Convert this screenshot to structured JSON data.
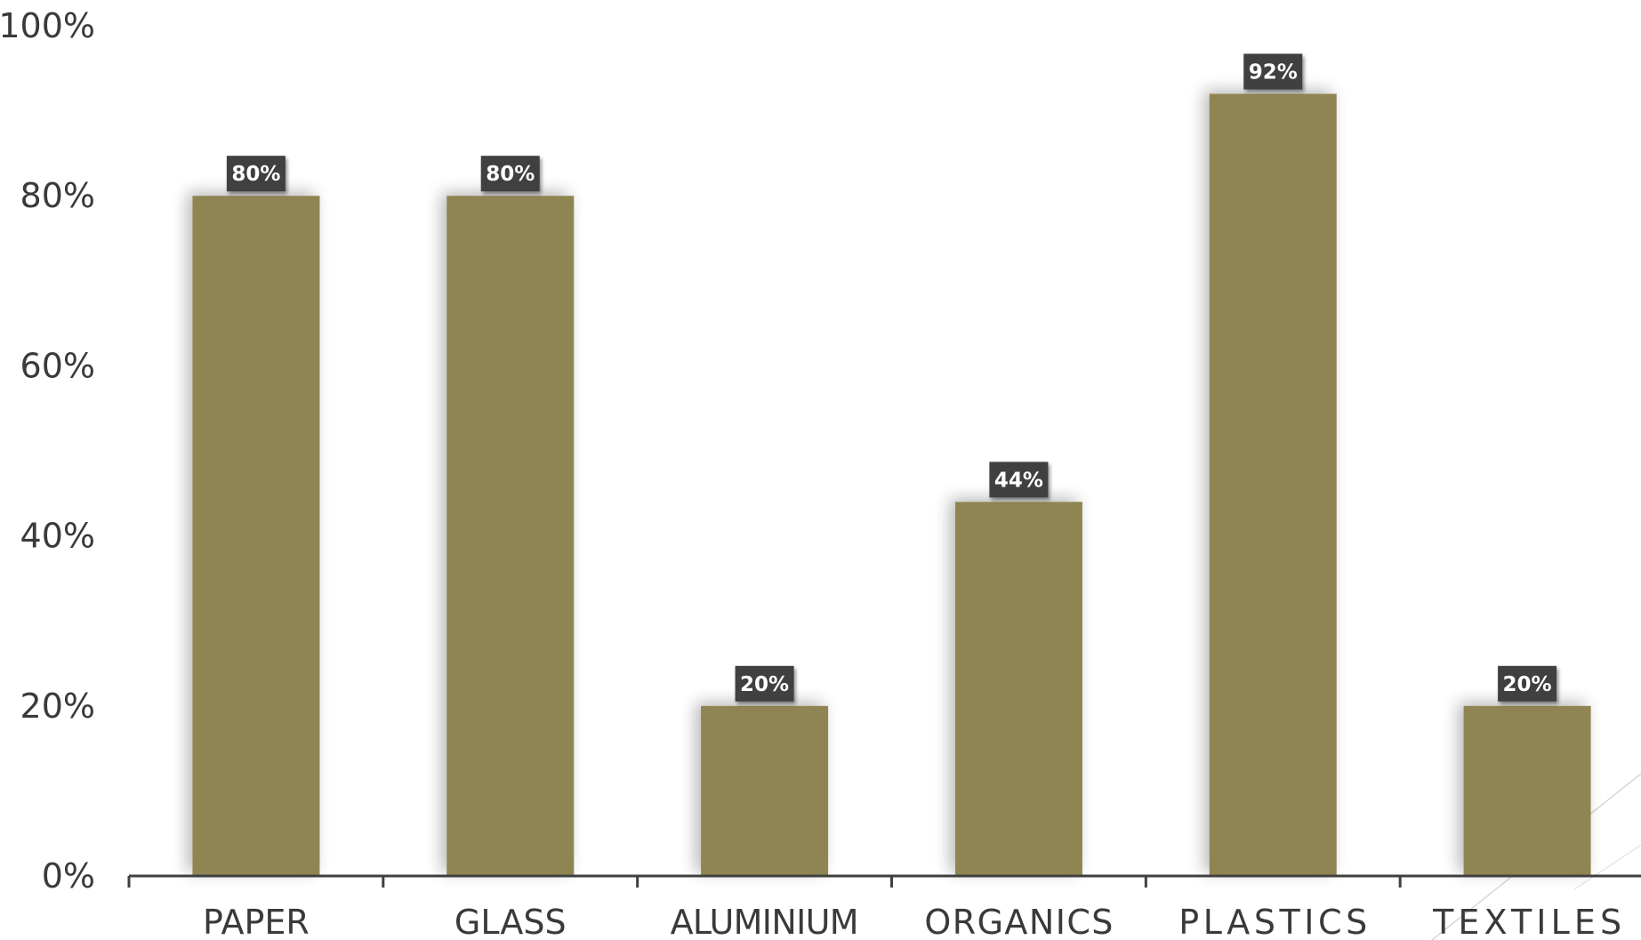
{
  "chart_data": {
    "type": "bar",
    "categories": [
      "PAPER",
      "GLASS",
      "ALUMINIUM",
      "ORGANICS",
      "PLASTICS",
      "TEXTILES"
    ],
    "values": [
      80,
      80,
      20,
      44,
      92,
      20
    ],
    "data_labels": [
      "80%",
      "80%",
      "20%",
      "44%",
      "92%",
      "20%"
    ],
    "y_ticks": [
      0,
      20,
      40,
      60,
      80,
      100
    ],
    "y_tick_labels": [
      "0%",
      "20%",
      "40%",
      "60%",
      "80%",
      "100%"
    ],
    "ylim": [
      0,
      100
    ],
    "grid": false,
    "legend": "none",
    "bar_color": "#8f8553",
    "label_bg_color": "#404040",
    "axis_color": "#404040"
  }
}
